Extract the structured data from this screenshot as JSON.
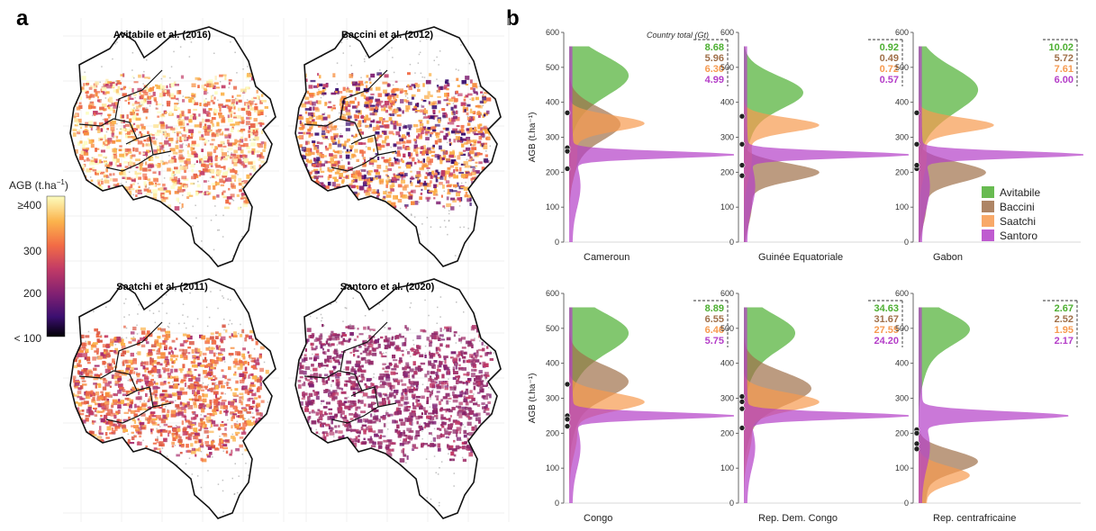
{
  "panels": {
    "a": "a",
    "b": "b"
  },
  "maps": [
    {
      "title": "Avitabile et al. (2016)",
      "style": "avitabile"
    },
    {
      "title": "Baccini et al. (2012)",
      "style": "baccini"
    },
    {
      "title": "Saatchi et al. (2011)",
      "style": "saatchi"
    },
    {
      "title": "Santoro et al. (2020)",
      "style": "santoro"
    }
  ],
  "colorbar": {
    "title": "AGB (t.ha",
    "title_sup": "−1",
    "title_end": ")",
    "ticks": [
      "≥400",
      "300",
      "200",
      "< 100"
    ],
    "colors": [
      "#fcfdbf",
      "#fbb34c",
      "#f26c46",
      "#c13a66",
      "#7f2072",
      "#3b0f70",
      "#000004"
    ]
  },
  "country_total_label": "Country total (Gt)",
  "legend": [
    {
      "name": "Avitabile",
      "color": "#4daf32"
    },
    {
      "name": "Baccini",
      "color": "#a0704a"
    },
    {
      "name": "Saatchi",
      "color": "#f79a4f"
    },
    {
      "name": "Santoro",
      "color": "#b43ec8"
    }
  ],
  "chart_data": {
    "type": "area",
    "orientation": "horizontal-density",
    "ylabel": "AGB (t.ha⁻¹)",
    "ylim": [
      0,
      600
    ],
    "yticks": [
      "0",
      "100",
      "200",
      "300",
      "400",
      "500",
      "600"
    ],
    "series_names": [
      "Avitabile",
      "Baccini",
      "Saatchi",
      "Santoro"
    ],
    "countries": [
      {
        "name": "Cameroun",
        "totals": [
          "8.68",
          "5.96",
          "6.30",
          "4.99"
        ],
        "peaks": [
          {
            "center": 480,
            "width": 55,
            "amp": 0.35
          },
          {
            "center": 340,
            "width": 45,
            "amp": 0.3
          },
          {
            "center": 340,
            "width": 22,
            "amp": 0.45
          },
          {
            "center": 250,
            "width": 10,
            "amp": 1.0
          }
        ],
        "means": [
          370,
          270,
          260,
          210
        ]
      },
      {
        "name": "Guinée Equatoriale",
        "totals": [
          "0.92",
          "0.49",
          "0.72",
          "0.57"
        ],
        "peaks": [
          {
            "center": 430,
            "width": 45,
            "amp": 0.35
          },
          {
            "center": 200,
            "width": 25,
            "amp": 0.45
          },
          {
            "center": 335,
            "width": 20,
            "amp": 0.45
          },
          {
            "center": 250,
            "width": 10,
            "amp": 1.0
          }
        ],
        "means": [
          360,
          190,
          280,
          220
        ]
      },
      {
        "name": "Gabon",
        "totals": [
          "10.02",
          "5.72",
          "7.61",
          "6.00"
        ],
        "peaks": [
          {
            "center": 440,
            "width": 60,
            "amp": 0.35
          },
          {
            "center": 200,
            "width": 28,
            "amp": 0.4
          },
          {
            "center": 335,
            "width": 20,
            "amp": 0.45
          },
          {
            "center": 250,
            "width": 10,
            "amp": 1.0
          }
        ],
        "means": [
          370,
          210,
          280,
          220
        ]
      },
      {
        "name": "Congo",
        "totals": [
          "8.89",
          "6.55",
          "6.46",
          "5.75"
        ],
        "peaks": [
          {
            "center": 490,
            "width": 55,
            "amp": 0.35
          },
          {
            "center": 350,
            "width": 45,
            "amp": 0.35
          },
          {
            "center": 290,
            "width": 25,
            "amp": 0.45
          },
          {
            "center": 250,
            "width": 10,
            "amp": 1.0
          }
        ],
        "means": [
          340,
          250,
          240,
          220
        ]
      },
      {
        "name": "Rep. Dem. Congo",
        "totals": [
          "34.63",
          "31.67",
          "27.55",
          "24.20"
        ],
        "peaks": [
          {
            "center": 490,
            "width": 50,
            "amp": 0.3
          },
          {
            "center": 330,
            "width": 45,
            "amp": 0.4
          },
          {
            "center": 290,
            "width": 25,
            "amp": 0.45
          },
          {
            "center": 250,
            "width": 10,
            "amp": 1.0
          }
        ],
        "means": [
          305,
          290,
          270,
          215
        ]
      },
      {
        "name": "Rep. centrafricaine",
        "totals": [
          "2.67",
          "2.52",
          "1.95",
          "2.17"
        ],
        "peaks": [
          {
            "center": 500,
            "width": 45,
            "amp": 0.3
          },
          {
            "center": 120,
            "width": 30,
            "amp": 0.35
          },
          {
            "center": 80,
            "width": 25,
            "amp": 0.3
          },
          {
            "center": 250,
            "width": 12,
            "amp": 0.9
          }
        ],
        "means": [
          210,
          200,
          170,
          155
        ]
      }
    ]
  }
}
